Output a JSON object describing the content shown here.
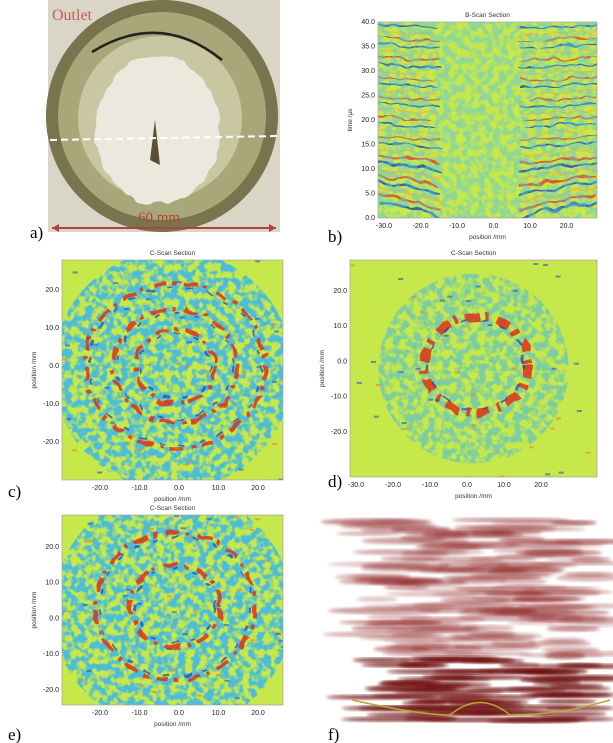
{
  "figure": {
    "panels": [
      {
        "label": "a)",
        "annotations": [
          "Outlet",
          "60 mm"
        ]
      },
      {
        "label": "b)",
        "title": "B-Scan Section",
        "xlabel": "position /mm",
        "ylabel": "time /µs",
        "xticks": [
          "-30.0",
          "-20.0",
          "-10.0",
          "0.0",
          "10.0",
          "20.0"
        ],
        "yticks": [
          "0.0",
          "5.0",
          "10.0",
          "15.0",
          "20.0",
          "25.0",
          "30.0",
          "35.0",
          "40.0"
        ]
      },
      {
        "label": "c)",
        "title": "C-Scan Section",
        "xlabel": "position /mm",
        "ylabel": "position /mm",
        "xticks": [
          "-20.0",
          "-10.0",
          "0.0",
          "10.0",
          "20.0"
        ],
        "yticks": [
          "20.0",
          "10.0",
          "0.0",
          "-10.0",
          "-20.0"
        ]
      },
      {
        "label": "d)",
        "title": "C-Scan Section",
        "xlabel": "position /mm",
        "ylabel": "position /mm",
        "xticks": [
          "-30.0",
          "-20.0",
          "-10.0",
          "0.0",
          "10.0",
          "20.0"
        ],
        "yticks": [
          "20.0",
          "10.0",
          "0.0",
          "-10.0",
          "-20.0"
        ]
      },
      {
        "label": "e)",
        "title": "C-Scan Section",
        "xlabel": "position /mm",
        "ylabel": "position /mm",
        "xticks": [
          "-20.0",
          "-10.0",
          "0.0",
          "10.0",
          "20.0"
        ],
        "yticks": [
          "20.0",
          "10.0",
          "0.0",
          "-10.0",
          "-20.0"
        ]
      },
      {
        "label": "f)"
      }
    ]
  }
}
